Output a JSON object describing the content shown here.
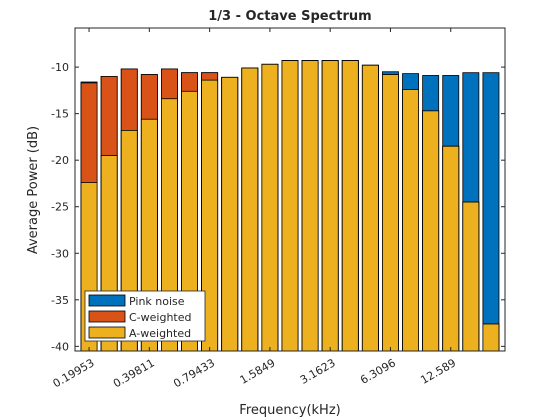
{
  "chart_data": {
    "type": "bar",
    "title": "1/3 - Octave Spectrum",
    "x_label": "Frequency(kHz)",
    "y_label": "Average Power (dB)",
    "categories": [
      "0.19953",
      null,
      null,
      "0.39811",
      null,
      null,
      "0.79433",
      null,
      null,
      "1.5849",
      null,
      null,
      "3.1623",
      null,
      null,
      "6.3096",
      null,
      null,
      "12.589",
      null,
      null
    ],
    "series": [
      {
        "name": "Pink noise",
        "color": "#0072bd",
        "values": [
          -11.6,
          -11.0,
          -10.2,
          -10.8,
          -10.2,
          -10.6,
          -10.6,
          -11.1,
          -10.1,
          -9.7,
          -9.3,
          -9.3,
          -9.3,
          -9.3,
          -9.8,
          -10.5,
          -10.7,
          -10.9,
          -10.9,
          -10.6,
          -10.6
        ]
      },
      {
        "name": "C-weighted",
        "color": "#d95319",
        "values": [
          -11.7,
          -11.0,
          -10.2,
          -10.8,
          -10.2,
          -10.6,
          -10.6,
          -11.1,
          -10.1,
          -9.7,
          -9.3,
          -9.3,
          -9.3,
          -9.3,
          -9.8,
          -10.8,
          -12.4,
          -14.7,
          -18.5,
          -24.5,
          -37.6
        ]
      },
      {
        "name": "A-weighted",
        "color": "#edb120",
        "values": [
          -22.4,
          -19.5,
          -16.8,
          -15.6,
          -13.4,
          -12.6,
          -11.4,
          -11.1,
          -10.1,
          -9.7,
          -9.3,
          -9.3,
          -9.3,
          -9.3,
          -9.8,
          -10.8,
          -12.4,
          -14.7,
          -18.5,
          -24.5,
          -37.6
        ]
      }
    ],
    "ylim": [
      -40.5,
      -5.8
    ],
    "yticks": [
      -40,
      -35,
      -30,
      -25,
      -20,
      -15,
      -10
    ],
    "legend": "lower left"
  }
}
